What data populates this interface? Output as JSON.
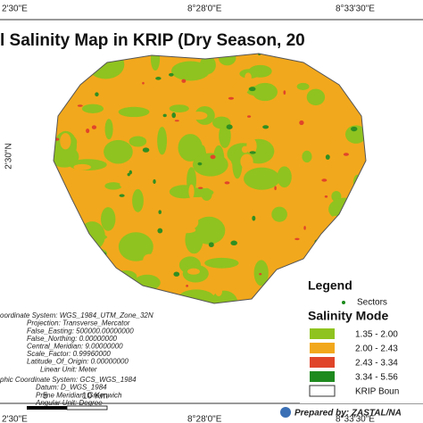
{
  "top_labels": [
    "2'30\"E",
    "8°28'0\"E",
    "8°33'30\"E"
  ],
  "title": "l Salinity Map in KRIP (Dry Season, 20",
  "left_label": "2'30\"N",
  "legend": {
    "title": "Legend",
    "sectors": "Sectors",
    "model_title": "Salinity Mode",
    "classes": [
      "1.35 - 2.00",
      "2.00 - 2.43",
      "2.43 - 3.34",
      "3.34 - 5.56"
    ],
    "boundary": "KRIP Boun"
  },
  "projection": [
    "oordinate System: WGS_1984_UTM_Zone_32N",
    "Projection: Transverse_Mercator",
    "False_Easting: 500000.00000000",
    "False_Northing: 0.00000000",
    "Central_Meridian: 9.00000000",
    "Scale_Factor: 0.99960000",
    "Latitude_Of_Origin: 0.00000000",
    "Linear Unit: Meter"
  ],
  "geographic": [
    "phic Coordinate System: GCS_WGS_1984",
    "Datum: D_WGS_1984",
    "Prime Meridian: Greenwich",
    "Angular Unit: Degree"
  ],
  "scale": [
    "5",
    "10 Km"
  ],
  "credit": "Prepared by: ZASTAL/NA",
  "bottom_labels": [
    "2'30\"E",
    "8°28'0\"E",
    "8°33'30\"E"
  ]
}
